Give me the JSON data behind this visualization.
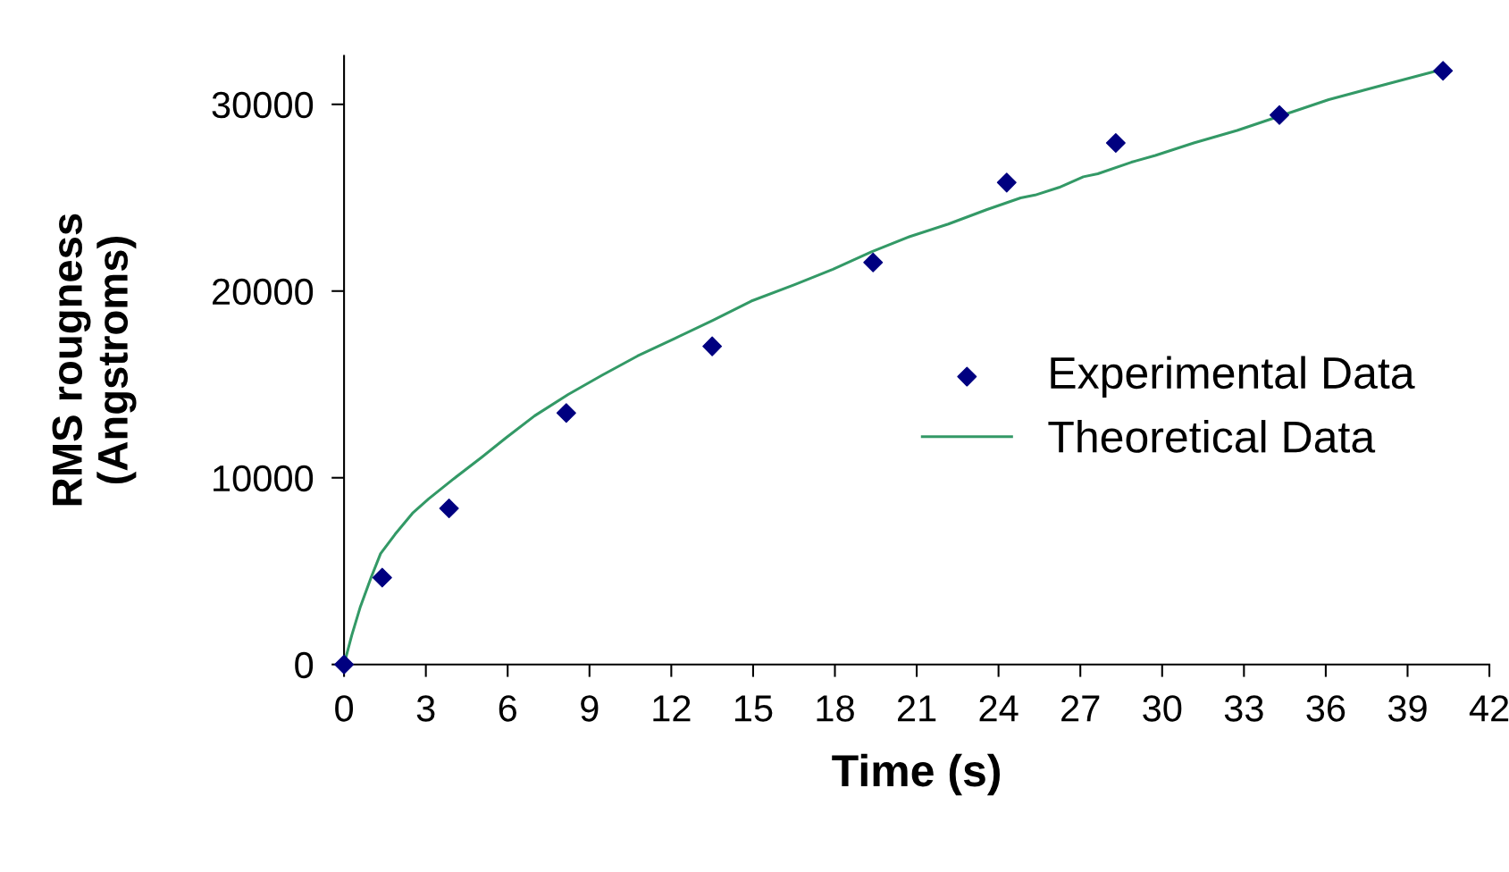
{
  "chart_data": {
    "type": "scatter",
    "xlabel": "Time (s)",
    "ylabel": "RMS rougness\n(Angstroms)",
    "xlim": [
      0,
      42
    ],
    "xticks": [
      0,
      3,
      6,
      9,
      12,
      15,
      18,
      21,
      24,
      27,
      30,
      33,
      36,
      39,
      42
    ],
    "ylim": [
      0,
      32600
    ],
    "yticks": [
      0,
      10000,
      20000,
      30000
    ],
    "grid": false,
    "legend": "right",
    "series": [
      {
        "name": "Experimental Data",
        "marker": "diamond",
        "color": "#000080",
        "x": [
          0,
          1.4,
          3.85,
          8.15,
          13.5,
          19.4,
          24.3,
          28.3,
          34.3,
          40.3
        ],
        "values": [
          0,
          4650,
          8360,
          13470,
          17040,
          21530,
          25810,
          27930,
          29430,
          31800
        ]
      },
      {
        "name": "Theoretical Data",
        "type": "line",
        "marker": "none",
        "line_style": "solid",
        "color": "#339966",
        "x": [
          0,
          0.28,
          0.6,
          0.99,
          1.34,
          1.87,
          2.51,
          3.11,
          3.99,
          5.05,
          5.93,
          6.99,
          8.22,
          9.46,
          10.76,
          12.11,
          13.52,
          14.93,
          16.52,
          17.93,
          19.34,
          20.75,
          22.16,
          23.58,
          24.81,
          25.34,
          26.22,
          27.11,
          27.64,
          28.87,
          29.75,
          31.16,
          32.75,
          36.11,
          38.22,
          40.34
        ],
        "values": [
          0,
          1550,
          3100,
          4650,
          5940,
          6970,
          8100,
          8880,
          9910,
          11100,
          12130,
          13320,
          14460,
          15490,
          16520,
          17450,
          18430,
          19460,
          20340,
          21170,
          22100,
          22920,
          23590,
          24370,
          24990,
          25140,
          25550,
          26120,
          26280,
          26900,
          27260,
          27930,
          28600,
          30250,
          31080,
          31900
        ]
      }
    ]
  }
}
